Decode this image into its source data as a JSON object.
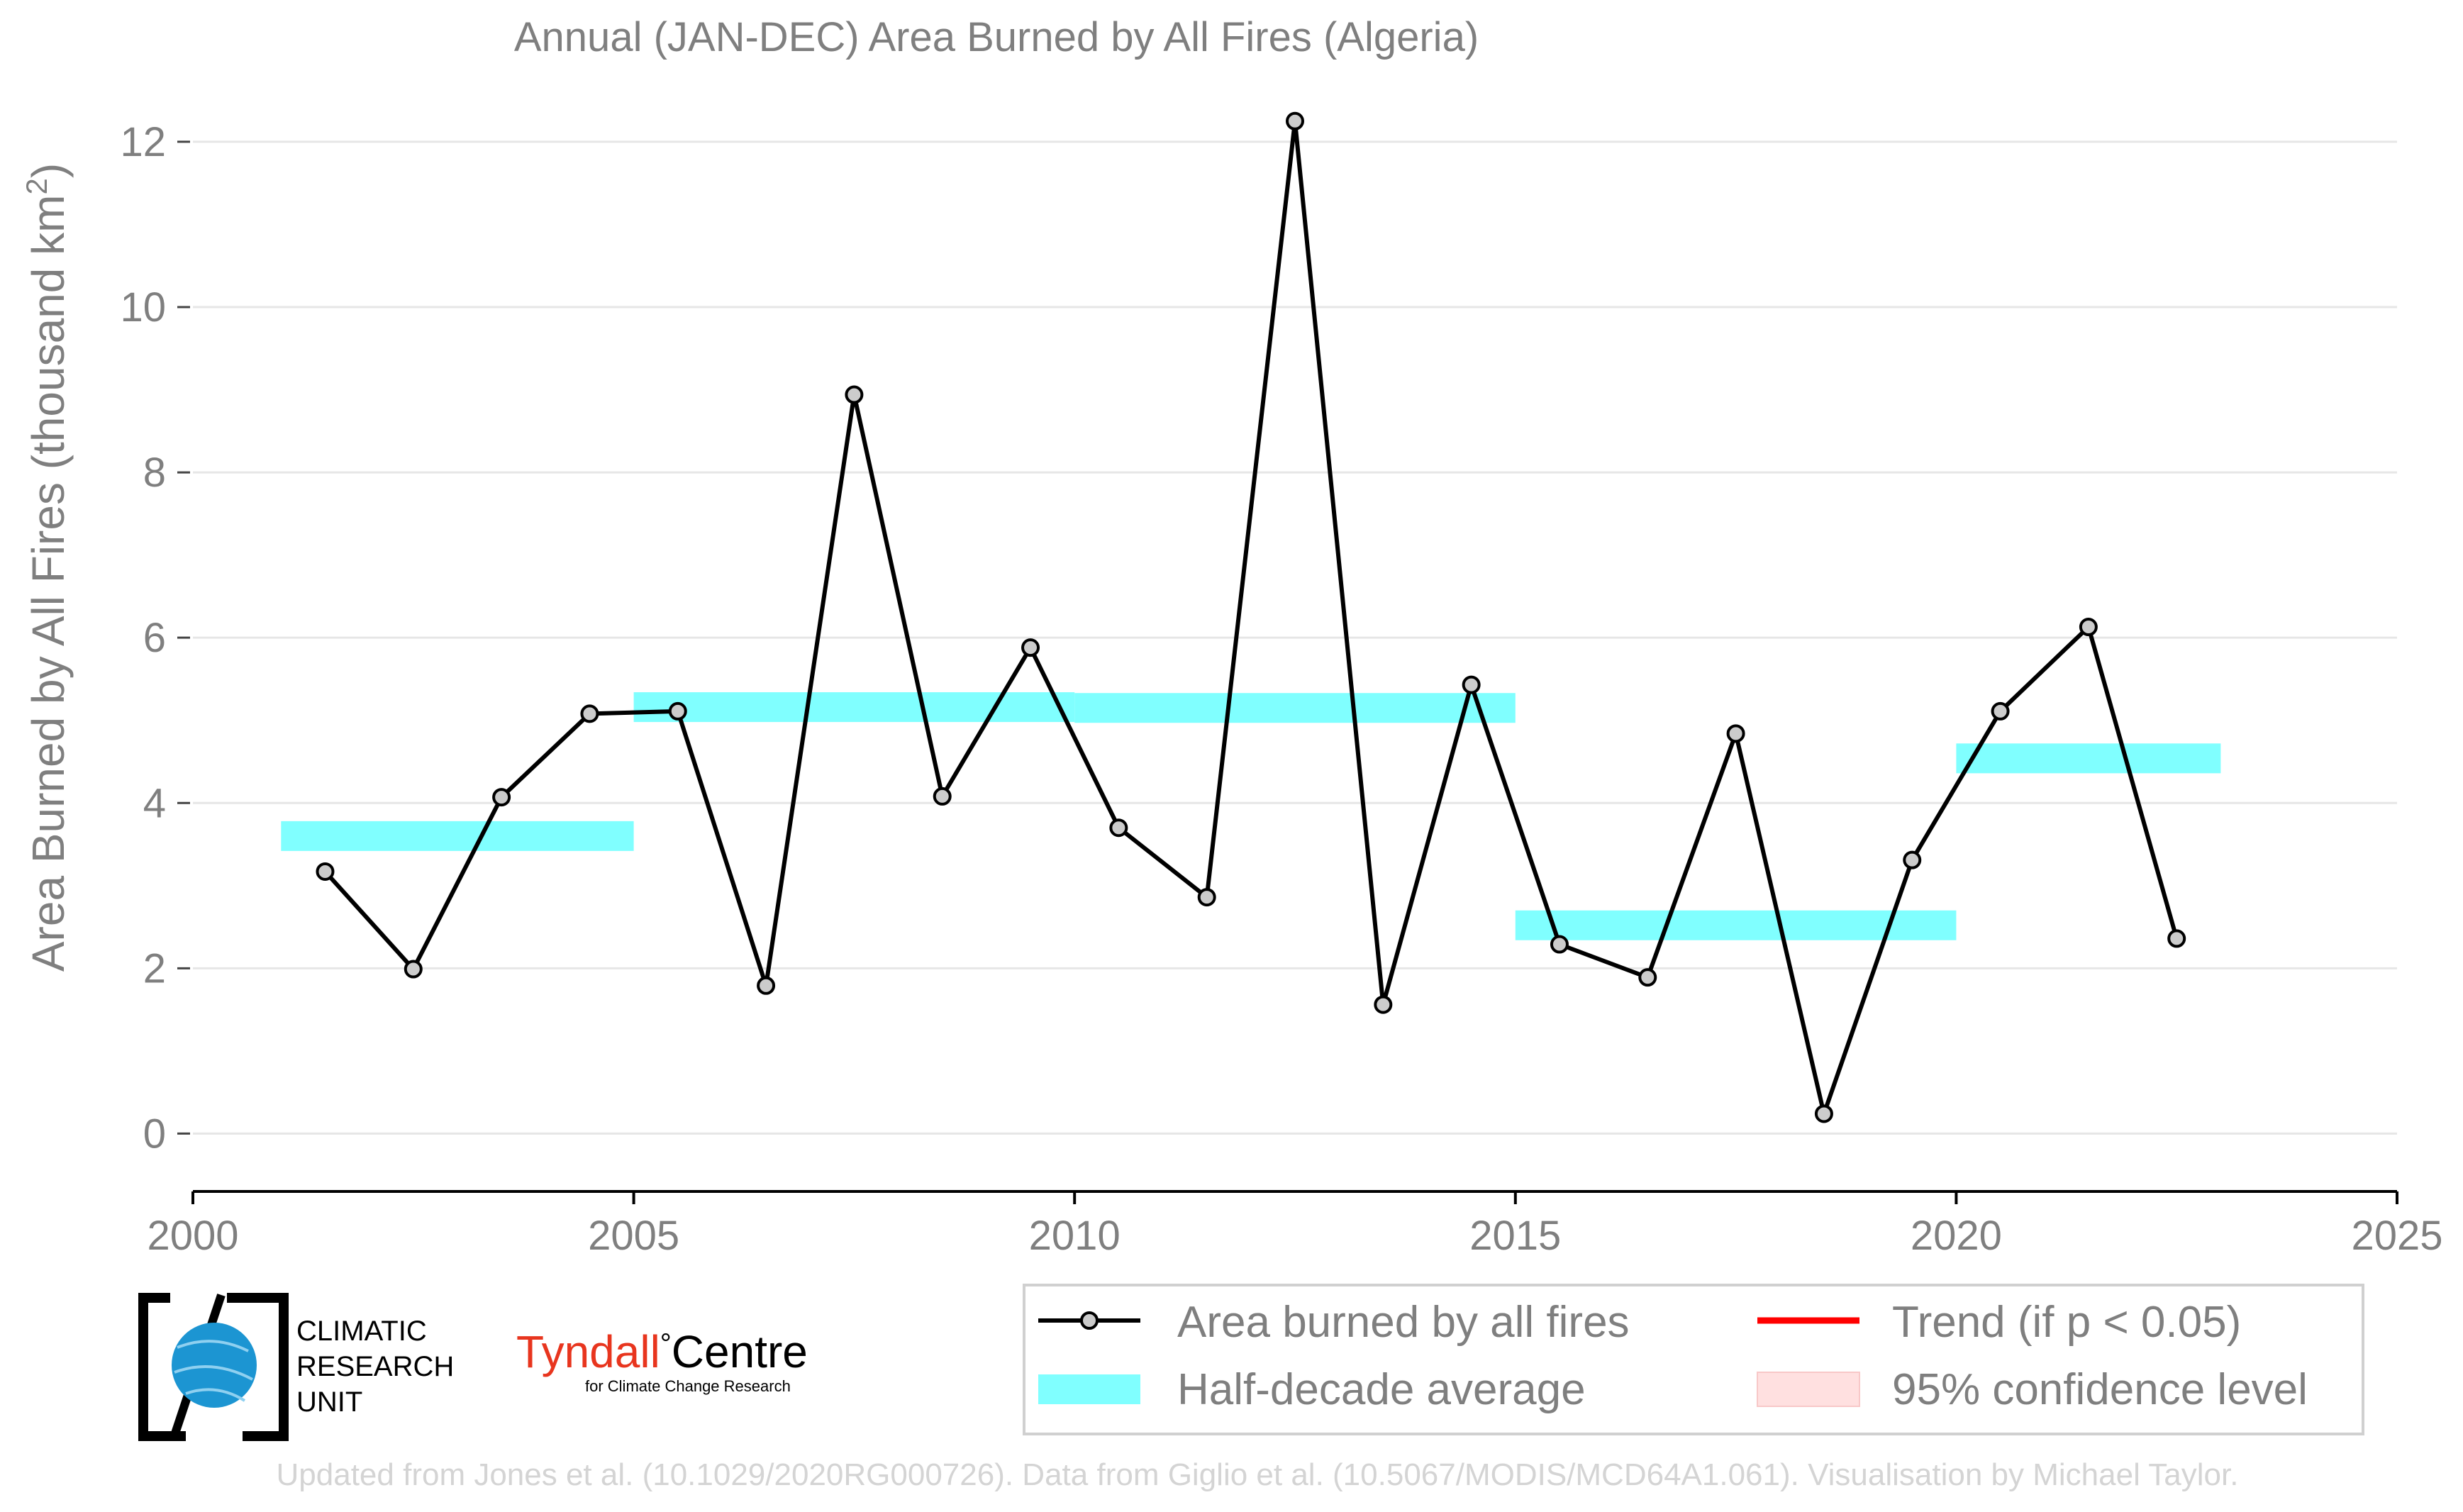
{
  "chart_data": {
    "type": "line",
    "title": "Annual (JAN-DEC) Area Burned by All Fires (Algeria)",
    "ylabel": "Area Burned by All Fires (thousand km",
    "ylabel_sup": "2",
    "ylabel_close": ")",
    "xlim": [
      2000,
      2025
    ],
    "ylim": [
      -0.7,
      12.6
    ],
    "x_ticks": [
      2000,
      2005,
      2010,
      2015,
      2020,
      2025
    ],
    "y_ticks": [
      0,
      2,
      4,
      6,
      8,
      10,
      12
    ],
    "grid": "horizontal",
    "series": [
      {
        "name": "Area burned by all fires",
        "kind": "line-markers",
        "color": "#000000",
        "marker_fill": "#cccccc",
        "x": [
          2001.5,
          2002.5,
          2003.5,
          2004.5,
          2005.5,
          2006.5,
          2007.5,
          2008.5,
          2009.5,
          2010.5,
          2011.5,
          2012.5,
          2013.5,
          2014.5,
          2015.5,
          2016.5,
          2017.5,
          2018.5,
          2019.5,
          2020.5,
          2021.5,
          2022.5
        ],
        "values": [
          3.17,
          1.99,
          4.07,
          5.08,
          5.11,
          1.79,
          8.94,
          4.08,
          5.88,
          3.7,
          2.86,
          12.25,
          1.56,
          5.43,
          2.29,
          1.89,
          4.84,
          0.24,
          3.31,
          5.11,
          6.13,
          2.36
        ]
      },
      {
        "name": "Half-decade average",
        "kind": "segments",
        "color": "#80ffff",
        "segments": [
          {
            "x0": 2001,
            "x1": 2005,
            "value": 3.6
          },
          {
            "x0": 2005,
            "x1": 2010,
            "value": 5.16
          },
          {
            "x0": 2010,
            "x1": 2015,
            "value": 5.15
          },
          {
            "x0": 2015,
            "x1": 2020,
            "value": 2.52
          },
          {
            "x0": 2020,
            "x1": 2023,
            "value": 4.54
          }
        ]
      }
    ],
    "legend": {
      "placement": "bottom-right",
      "items": [
        {
          "label": "Area burned by all fires",
          "kind": "line-marker",
          "color": "#000000"
        },
        {
          "label": "Trend (if p < 0.05)",
          "kind": "line",
          "color": "#ff0000"
        },
        {
          "label": "Half-decade average",
          "kind": "band",
          "color": "#80ffff"
        },
        {
          "label": "95% confidence level",
          "kind": "patch",
          "color": "#ffe0e0"
        }
      ]
    }
  },
  "logos": {
    "cru": [
      "CLIMATIC",
      "RESEARCH",
      "UNIT"
    ],
    "tyndall_brand": "Tyndall",
    "tyndall_degree": "°",
    "tyndall_centre": "Centre",
    "tyndall_sub": "for Climate Change Research",
    "tyndall_color": "#e8351e"
  },
  "footer": "Updated from Jones et al. (10.1029/2020RG000726). Data from Giglio et al. (10.5067/MODIS/MCD64A1.061). Visualisation by Michael Taylor."
}
